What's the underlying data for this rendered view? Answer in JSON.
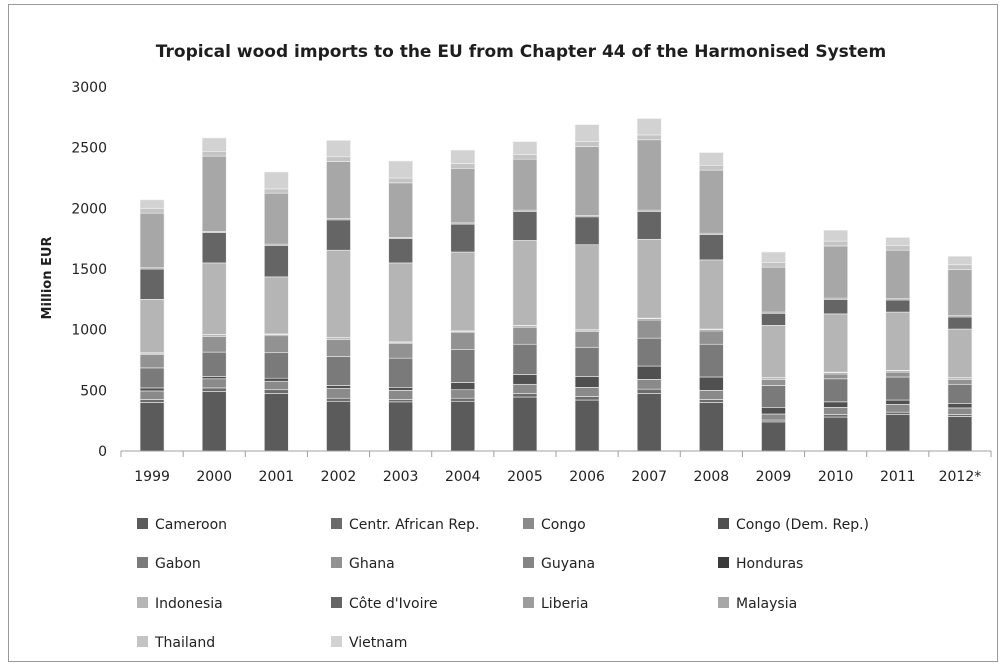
{
  "chart_data": {
    "type": "bar",
    "stacked": true,
    "title": "Tropical wood imports to the EU from Chapter 44 of the Harmonised System",
    "xlabel": "",
    "ylabel": "Million EUR",
    "ylim": [
      0,
      3000
    ],
    "yticks": [
      0,
      500,
      1000,
      1500,
      2000,
      2500,
      3000
    ],
    "grid": false,
    "legend": "bottom",
    "categories": [
      "1999",
      "2000",
      "2001",
      "2002",
      "2003",
      "2004",
      "2005",
      "2006",
      "2007",
      "2008",
      "2009",
      "2010",
      "2011",
      "2012*"
    ],
    "series": [
      {
        "name": "Cameroon",
        "color": "#5b5b5b",
        "values": [
          400,
          490,
          475,
          410,
          405,
          410,
          445,
          420,
          475,
          400,
          240,
          280,
          300,
          285
        ]
      },
      {
        "name": "Centr. African Rep.",
        "color": "#6b6b6b",
        "values": [
          25,
          30,
          30,
          25,
          20,
          25,
          30,
          30,
          35,
          25,
          15,
          20,
          20,
          15
        ]
      },
      {
        "name": "Congo",
        "color": "#8a8a8a",
        "values": [
          70,
          75,
          70,
          80,
          75,
          70,
          75,
          75,
          80,
          75,
          50,
          60,
          65,
          55
        ]
      },
      {
        "name": "Congo (Dem. Rep.)",
        "color": "#505050",
        "values": [
          25,
          20,
          25,
          25,
          25,
          60,
          80,
          90,
          110,
          110,
          55,
          45,
          35,
          35
        ]
      },
      {
        "name": "Gabon",
        "color": "#7a7a7a",
        "values": [
          165,
          200,
          210,
          240,
          240,
          270,
          250,
          240,
          230,
          270,
          180,
          190,
          190,
          160
        ]
      },
      {
        "name": "Ghana",
        "color": "#929292",
        "values": [
          110,
          130,
          140,
          140,
          120,
          140,
          140,
          130,
          150,
          110,
          50,
          40,
          40,
          40
        ]
      },
      {
        "name": "Guyana",
        "color": "#858585",
        "values": [
          10,
          10,
          10,
          10,
          10,
          10,
          10,
          10,
          10,
          10,
          10,
          10,
          10,
          10
        ]
      },
      {
        "name": "Honduras",
        "color": "#3a3a3a",
        "values": [
          5,
          5,
          5,
          5,
          5,
          5,
          5,
          5,
          5,
          5,
          5,
          5,
          5,
          5
        ]
      },
      {
        "name": "Indonesia",
        "color": "#b5b5b5",
        "values": [
          440,
          590,
          470,
          720,
          650,
          650,
          700,
          700,
          650,
          570,
          430,
          480,
          480,
          400
        ]
      },
      {
        "name": "Côte d'Ivoire",
        "color": "#656565",
        "values": [
          250,
          250,
          260,
          250,
          200,
          230,
          240,
          230,
          230,
          210,
          100,
          120,
          100,
          100
        ]
      },
      {
        "name": "Liberia",
        "color": "#9c9c9c",
        "values": [
          10,
          10,
          10,
          10,
          10,
          10,
          10,
          10,
          10,
          10,
          10,
          10,
          10,
          10
        ]
      },
      {
        "name": "Malaysia",
        "color": "#a7a7a7",
        "values": [
          450,
          620,
          420,
          470,
          450,
          450,
          420,
          570,
          580,
          520,
          370,
          430,
          400,
          380
        ]
      },
      {
        "name": "Thailand",
        "color": "#c4c4c4",
        "values": [
          40,
          40,
          35,
          40,
          40,
          40,
          40,
          40,
          40,
          40,
          40,
          40,
          40,
          40
        ]
      },
      {
        "name": "Vietnam",
        "color": "#d2d2d2",
        "values": [
          70,
          110,
          140,
          135,
          140,
          110,
          105,
          140,
          135,
          105,
          85,
          90,
          65,
          70
        ]
      }
    ]
  }
}
